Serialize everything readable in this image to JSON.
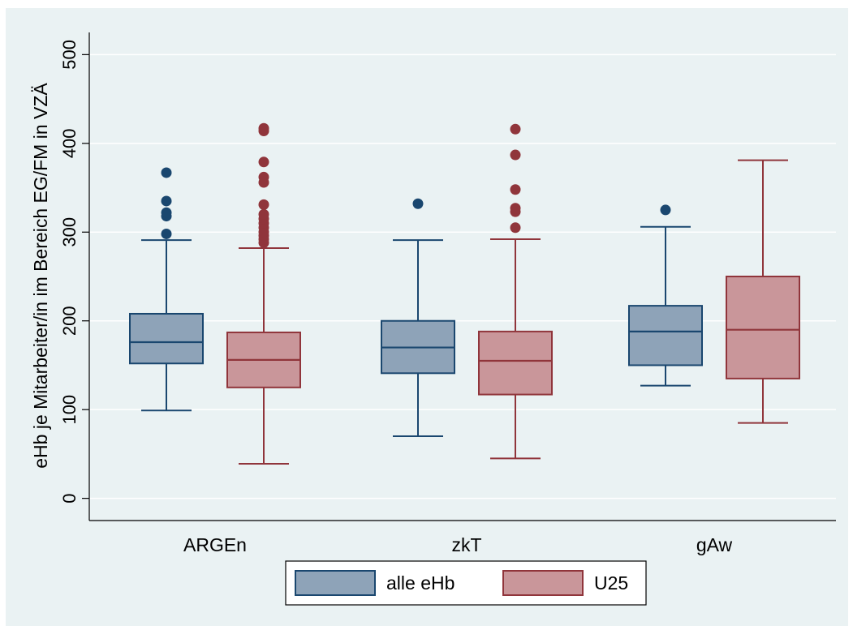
{
  "chart_data": {
    "type": "box",
    "ylabel": "eHb je Mitarbeiter/in im Bereich EG/FM in VZÄ",
    "xlabel": "",
    "ylim": [
      -25,
      525
    ],
    "yticks": [
      0,
      100,
      200,
      300,
      400,
      500
    ],
    "grid": true,
    "legend_position": "bottom",
    "categories": [
      "ARGEn",
      "zkT",
      "gAw"
    ],
    "colors": {
      "plot_background": "#eaf2f3",
      "grid": "#ffffff",
      "alle_fill": "#8ea3b8",
      "alle_stroke": "#1a476f",
      "u25_fill": "#c9969a",
      "u25_stroke": "#90353b"
    },
    "series": [
      {
        "name": "alle eHb",
        "boxes": [
          {
            "whisker_low": 99,
            "q1": 152,
            "median": 176,
            "q3": 208,
            "whisker_high": 291,
            "outliers": [
              298,
              318,
              322,
              335,
              367
            ]
          },
          {
            "whisker_low": 70,
            "q1": 141,
            "median": 170,
            "q3": 200,
            "whisker_high": 291,
            "outliers": [
              332
            ]
          },
          {
            "whisker_low": 127,
            "q1": 150,
            "median": 188,
            "q3": 217,
            "whisker_high": 306,
            "outliers": [
              325
            ]
          }
        ]
      },
      {
        "name": "U25",
        "boxes": [
          {
            "whisker_low": 39,
            "q1": 125,
            "median": 156,
            "q3": 187,
            "whisker_high": 282,
            "outliers": [
              288,
              292,
              296,
              300,
              305,
              310,
              315,
              320,
              331,
              356,
              362,
              379,
              414,
              417
            ]
          },
          {
            "whisker_low": 45,
            "q1": 117,
            "median": 155,
            "q3": 188,
            "whisker_high": 292,
            "outliers": [
              305,
              323,
              327,
              348,
              387,
              416
            ]
          },
          {
            "whisker_low": 85,
            "q1": 135,
            "median": 190,
            "q3": 250,
            "whisker_high": 381,
            "outliers": []
          }
        ]
      }
    ]
  }
}
